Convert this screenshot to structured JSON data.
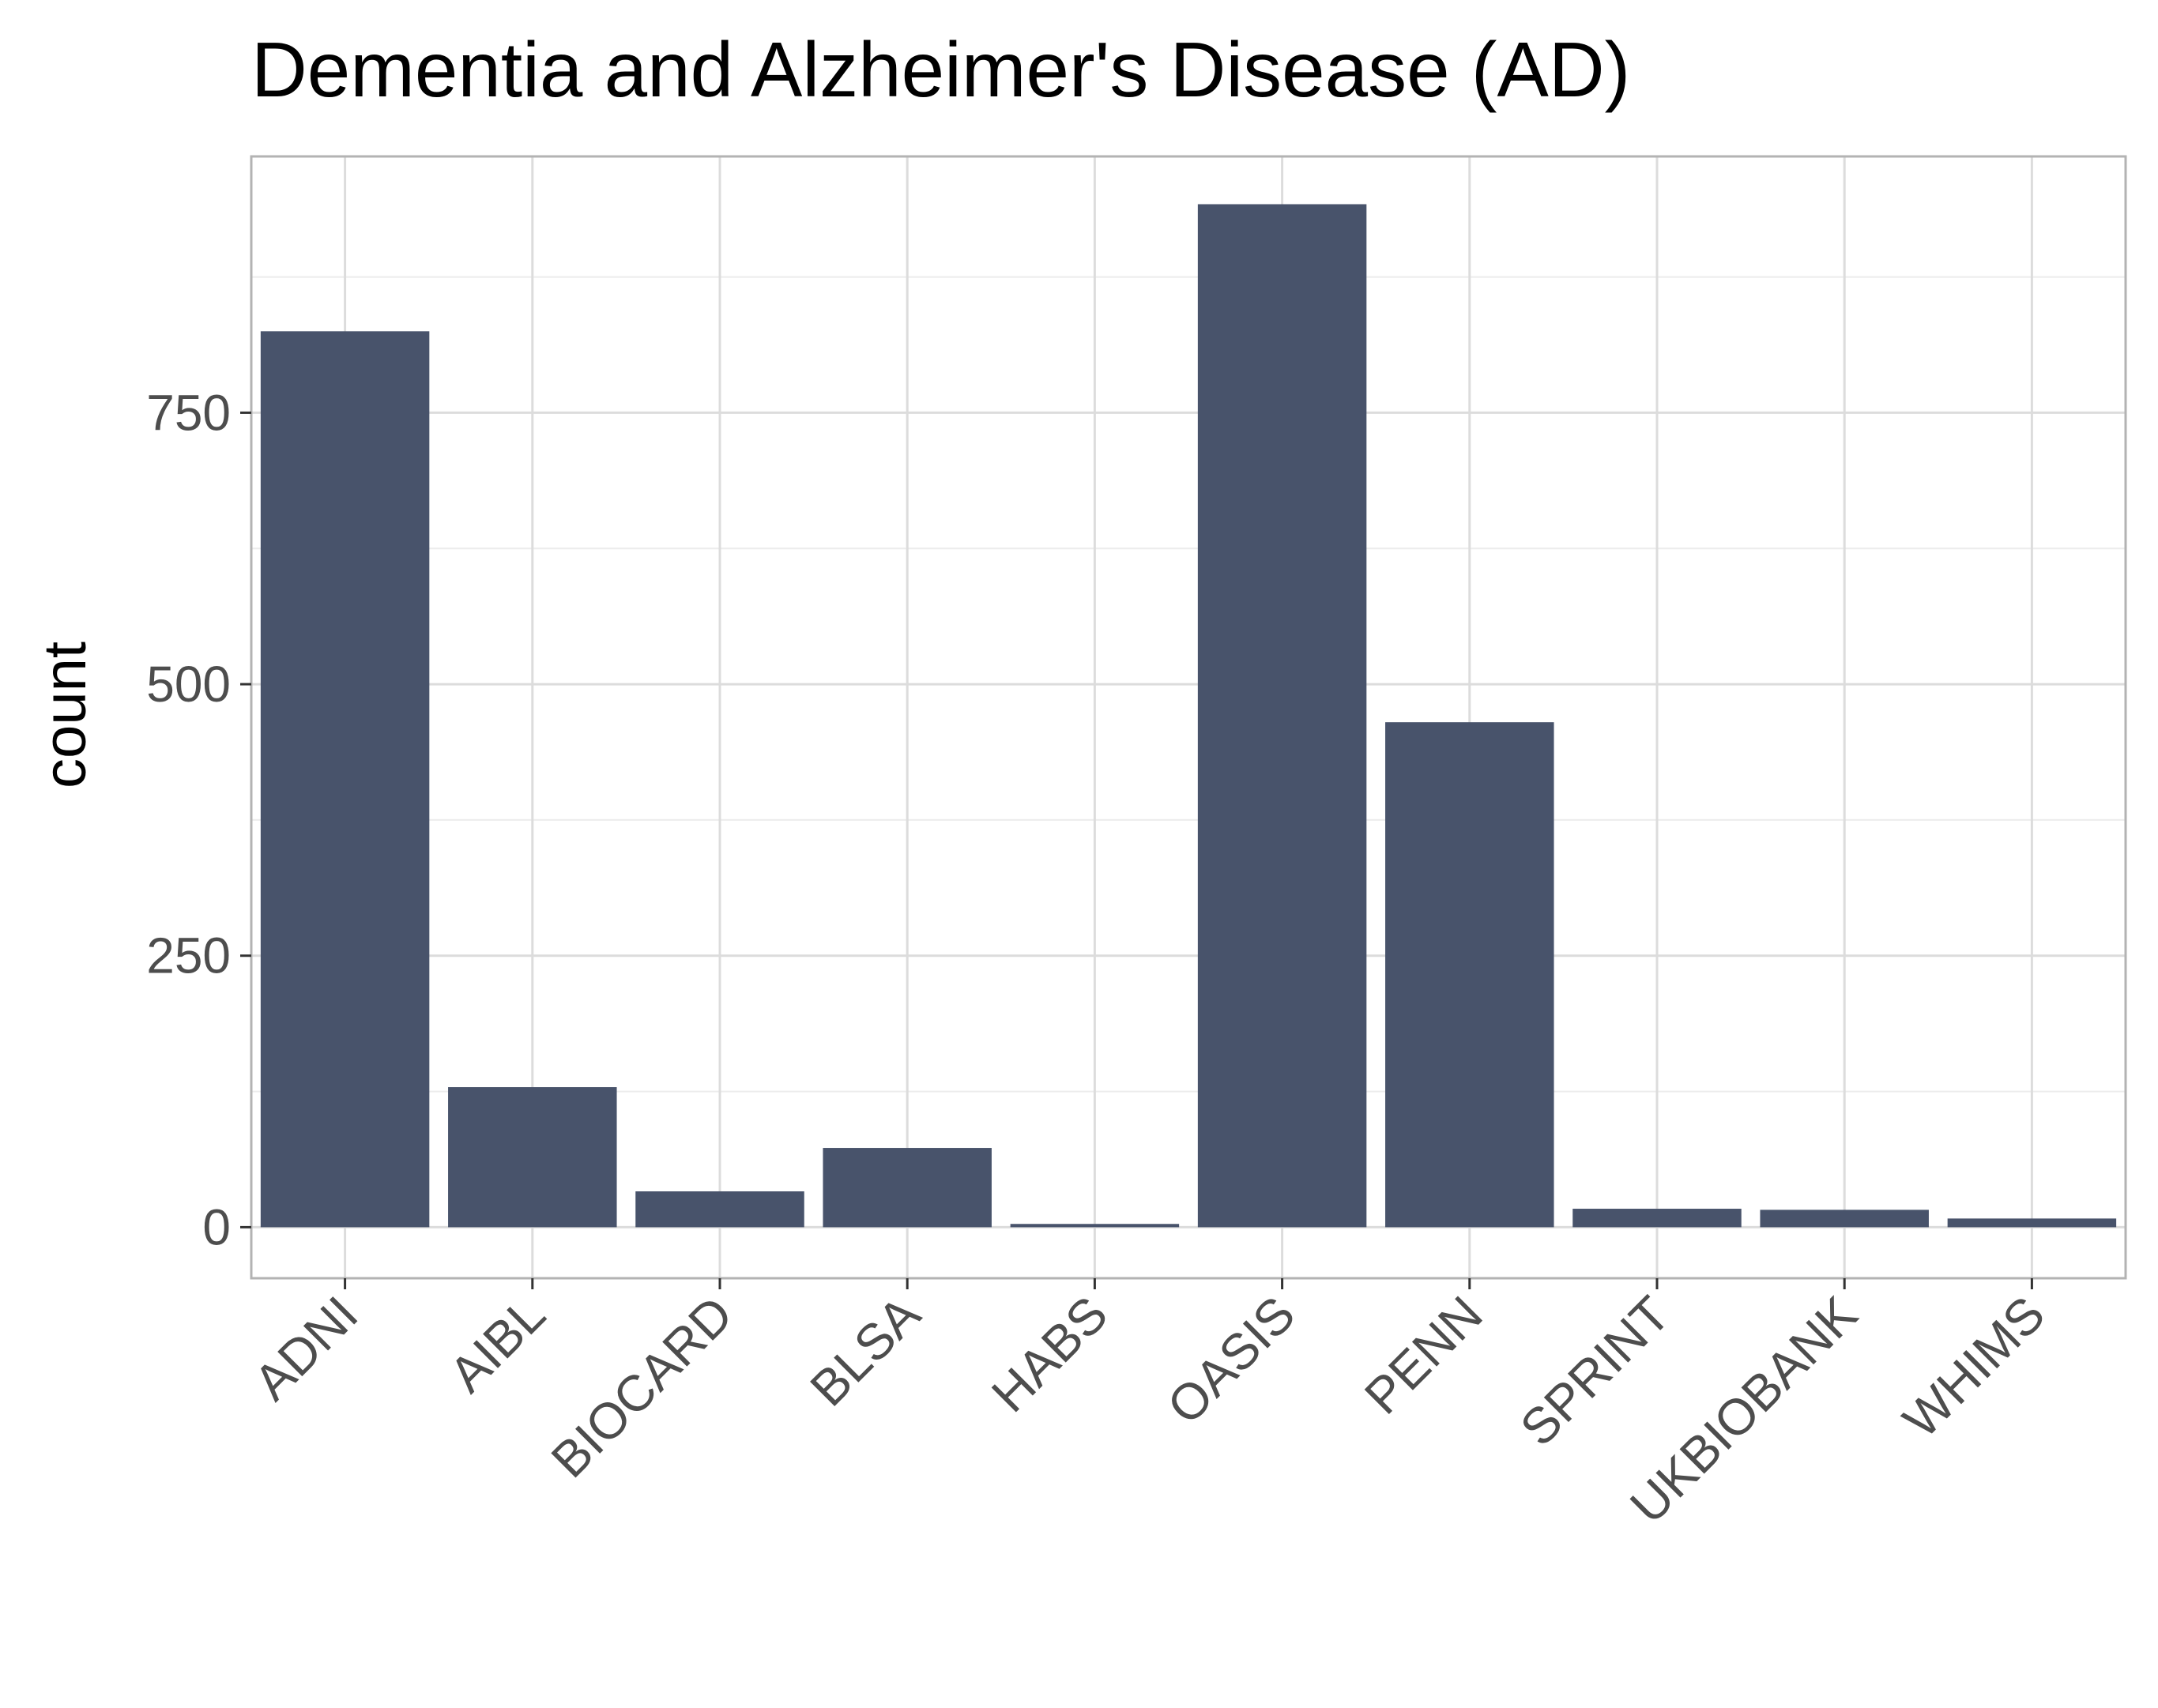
{
  "chart_data": {
    "type": "bar",
    "title": "Dementia and Alzheimer's Disease (AD)",
    "xlabel": "",
    "ylabel": "count",
    "categories": [
      "ADNI",
      "AIBL",
      "BIOCARD",
      "BLSA",
      "HABS",
      "OASIS",
      "PENN",
      "SPRINT",
      "UKBIOBANK",
      "WHIMS"
    ],
    "values": [
      825,
      129,
      33,
      73,
      3,
      942,
      465,
      17,
      16,
      8
    ],
    "yticks": [
      0,
      250,
      500,
      750
    ],
    "ylim": [
      -47,
      986
    ],
    "grid": true,
    "legend": "none",
    "bar_color": "#48536b",
    "grid_color": "#dcdcdc",
    "panel_border_color": "#b3b3b3"
  }
}
